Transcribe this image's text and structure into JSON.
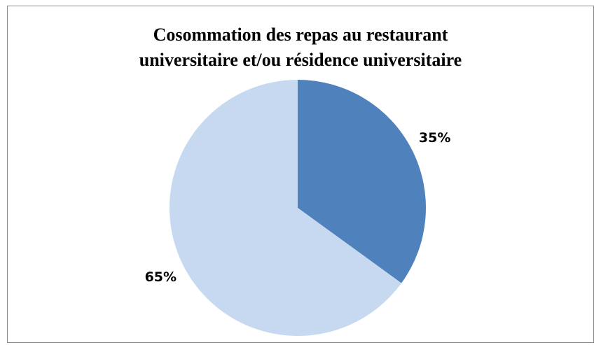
{
  "chart_data": {
    "type": "pie",
    "title": [
      "Cosommation des repas au restaurant",
      "universitaire et/ou résidence universitaire"
    ],
    "categories": [
      null,
      null
    ],
    "values": [
      35,
      65
    ],
    "value_labels": [
      "35%",
      "65%"
    ],
    "colors": [
      "#4f81bd",
      "#c6d9f0"
    ]
  }
}
